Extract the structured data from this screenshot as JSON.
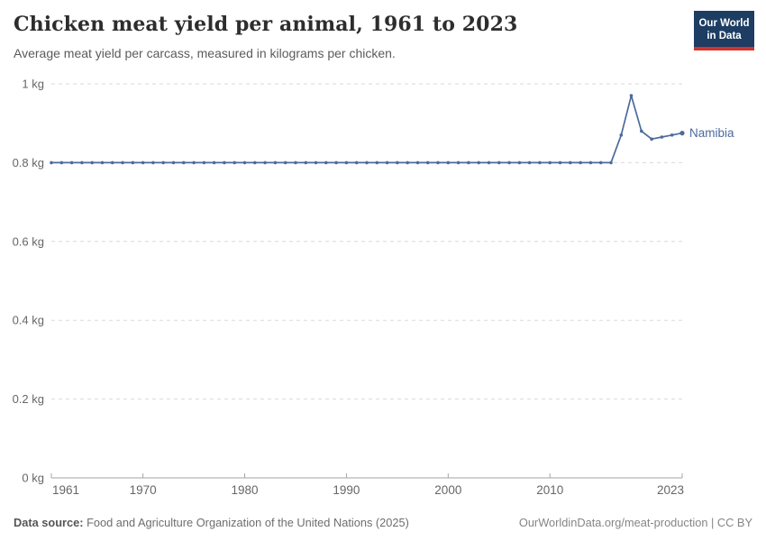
{
  "header": {
    "title": "Chicken meat yield per animal, 1961 to 2023",
    "subtitle": "Average meat yield per carcass, measured in kilograms per chicken.",
    "logo": {
      "line1": "Our World",
      "line2": "in Data",
      "bg": "#1d3d63",
      "stripe": "#d0342c"
    }
  },
  "footer": {
    "source_label": "Data source:",
    "source_text": " Food and Agriculture Organization of the United Nations (2025)",
    "link": "OurWorldinData.org/meat-production | CC BY"
  },
  "chart_data": {
    "type": "line",
    "title": "Chicken meat yield per animal, 1961 to 2023",
    "subtitle": "Average meat yield per carcass, measured in kilograms per chicken.",
    "entity": "Namibia",
    "unit": "kg",
    "ylim": [
      0,
      1
    ],
    "grid": "dashed horizontal gridlines, legend as inline entity label at line end",
    "years": [
      1961,
      1962,
      1963,
      1964,
      1965,
      1966,
      1967,
      1968,
      1969,
      1970,
      1971,
      1972,
      1973,
      1974,
      1975,
      1976,
      1977,
      1978,
      1979,
      1980,
      1981,
      1982,
      1983,
      1984,
      1985,
      1986,
      1987,
      1988,
      1989,
      1990,
      1991,
      1992,
      1993,
      1994,
      1995,
      1996,
      1997,
      1998,
      1999,
      2000,
      2001,
      2002,
      2003,
      2004,
      2005,
      2006,
      2007,
      2008,
      2009,
      2010,
      2011,
      2012,
      2013,
      2014,
      2015,
      2016,
      2017,
      2018,
      2019,
      2020,
      2021,
      2022,
      2023
    ],
    "values": [
      0.8,
      0.8,
      0.8,
      0.8,
      0.8,
      0.8,
      0.8,
      0.8,
      0.8,
      0.8,
      0.8,
      0.8,
      0.8,
      0.8,
      0.8,
      0.8,
      0.8,
      0.8,
      0.8,
      0.8,
      0.8,
      0.8,
      0.8,
      0.8,
      0.8,
      0.8,
      0.8,
      0.8,
      0.8,
      0.8,
      0.8,
      0.8,
      0.8,
      0.8,
      0.8,
      0.8,
      0.8,
      0.8,
      0.8,
      0.8,
      0.8,
      0.8,
      0.8,
      0.8,
      0.8,
      0.8,
      0.8,
      0.8,
      0.8,
      0.8,
      0.8,
      0.8,
      0.8,
      0.8,
      0.8,
      0.8,
      0.87,
      0.97,
      0.88,
      0.86,
      0.865,
      0.87,
      0.875
    ],
    "y_ticks": [
      {
        "value": 0,
        "label": "0 kg"
      },
      {
        "value": 0.2,
        "label": "0.2 kg"
      },
      {
        "value": 0.4,
        "label": "0.4 kg"
      },
      {
        "value": 0.6,
        "label": "0.6 kg"
      },
      {
        "value": 0.8,
        "label": "0.8 kg"
      },
      {
        "value": 1,
        "label": "1 kg"
      }
    ],
    "x_ticks": [
      {
        "value": 1961,
        "label": "1961"
      },
      {
        "value": 1970,
        "label": "1970"
      },
      {
        "value": 1980,
        "label": "1980"
      },
      {
        "value": 1990,
        "label": "1990"
      },
      {
        "value": 2000,
        "label": "2000"
      },
      {
        "value": 2010,
        "label": "2010"
      },
      {
        "value": 2023,
        "label": "2023"
      }
    ],
    "colors": {
      "line": "#4c6a9c",
      "entity_label": "#4c6a9c",
      "grid": "#dadada",
      "axis": "#a5a5a5",
      "tick_label": "#666666"
    }
  }
}
